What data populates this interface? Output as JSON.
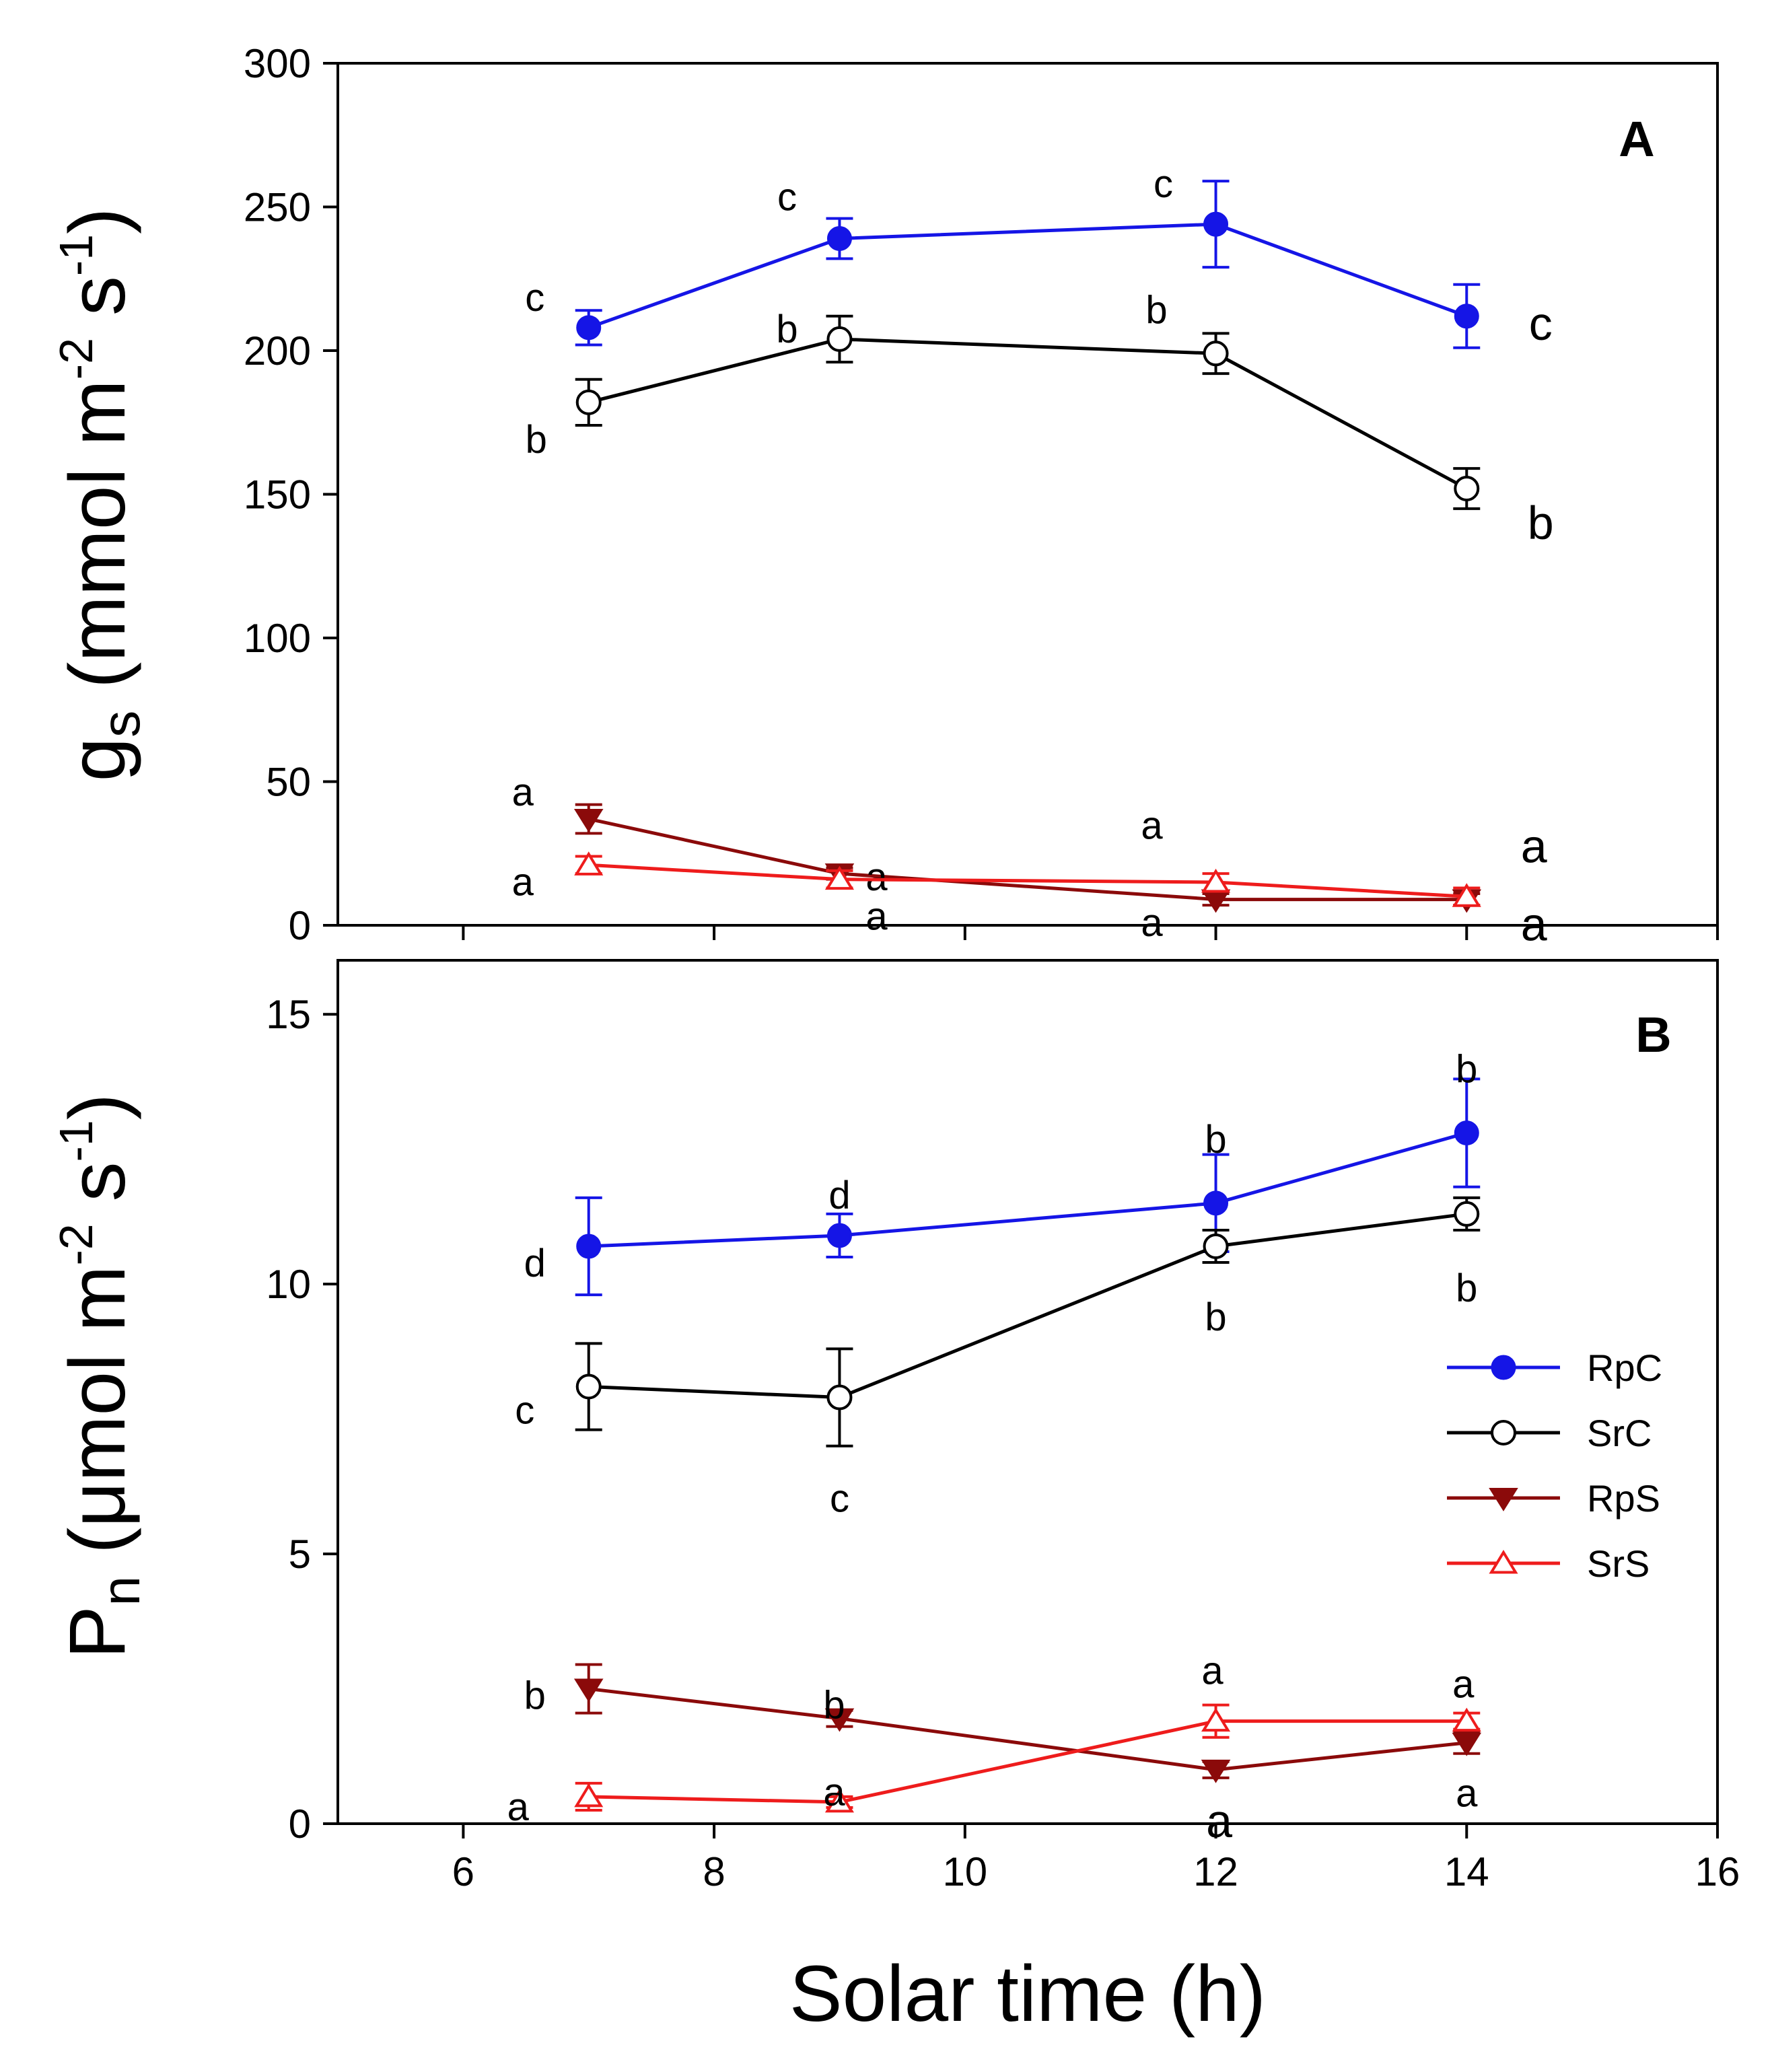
{
  "chart_data": [
    {
      "panel": "A",
      "type": "line",
      "ylabel_main": "g",
      "ylabel_sub": "s",
      "ylabel_rest": " (mmol m",
      "ylabel_sup1": "-2",
      "ylabel_mid": " s",
      "ylabel_sup2": "-1",
      "ylabel_end": ")",
      "xlim": [
        5,
        16
      ],
      "ylim": [
        0,
        300
      ],
      "yticks": [
        0,
        50,
        100,
        150,
        200,
        250,
        300
      ],
      "ytick_labels": [
        "0",
        "50",
        "100",
        "150",
        "200",
        "250",
        "300"
      ],
      "x": [
        7,
        9,
        12,
        14
      ],
      "series": [
        {
          "name": "RpC",
          "values": [
            208,
            239,
            244,
            212
          ],
          "errors": [
            6,
            7,
            15,
            11
          ],
          "letters": [
            "c",
            "c",
            "c",
            "c"
          ]
        },
        {
          "name": "SrC",
          "values": [
            182,
            204,
            199,
            152
          ],
          "errors": [
            8,
            8,
            7,
            7
          ],
          "letters": [
            "b",
            "b",
            "b",
            "b"
          ]
        },
        {
          "name": "RpS",
          "values": [
            37,
            18,
            9,
            9
          ],
          "errors": [
            5,
            2,
            2,
            2
          ],
          "letters": [
            "a",
            "a",
            "a",
            "a"
          ]
        },
        {
          "name": "SrS",
          "values": [
            21,
            16,
            15,
            10
          ],
          "errors": [
            3,
            3,
            3,
            3
          ],
          "letters": [
            "a",
            "a",
            "a",
            "a"
          ]
        }
      ]
    },
    {
      "panel": "B",
      "type": "line",
      "ylabel_main": "P",
      "ylabel_sub": "n",
      "ylabel_rest": " (μmol m",
      "ylabel_sup1": "-2",
      "ylabel_mid": " s",
      "ylabel_sup2": "-1",
      "ylabel_end": ")",
      "xlabel": "Solar time (h)",
      "xlim": [
        5,
        16
      ],
      "ylim": [
        0,
        16
      ],
      "yticks": [
        0,
        5,
        10,
        15
      ],
      "ytick_labels": [
        "0",
        "5",
        "10",
        "15"
      ],
      "xticks": [
        6,
        8,
        10,
        12,
        14,
        16
      ],
      "xtick_labels": [
        "6",
        "8",
        "10",
        "12",
        "14",
        "16"
      ],
      "x": [
        7,
        9,
        12,
        14
      ],
      "series": [
        {
          "name": "RpC",
          "values": [
            10.7,
            10.9,
            11.5,
            12.8
          ],
          "errors": [
            0.9,
            0.4,
            0.9,
            1.0
          ],
          "letters": [
            "d",
            "d",
            "b",
            "b"
          ]
        },
        {
          "name": "SrC",
          "values": [
            8.1,
            7.9,
            10.7,
            11.3
          ],
          "errors": [
            0.8,
            0.9,
            0.3,
            0.3
          ],
          "letters": [
            "c",
            "c",
            "b",
            "b"
          ]
        },
        {
          "name": "RpS",
          "values": [
            2.5,
            1.95,
            1.0,
            1.5
          ],
          "errors": [
            0.45,
            0.15,
            0.15,
            0.2
          ],
          "letters": [
            "b",
            "b",
            "a",
            "a"
          ]
        },
        {
          "name": "SrS",
          "values": [
            0.5,
            0.4,
            1.9,
            1.9
          ],
          "errors": [
            0.25,
            0.1,
            0.3,
            0.15
          ],
          "letters": [
            "a",
            "a",
            "a",
            "a"
          ]
        }
      ]
    }
  ],
  "legend": [
    {
      "name": "RpC",
      "label": "RpC",
      "color": "#1515e6",
      "marker": "filled-circle"
    },
    {
      "name": "SrC",
      "label": "SrC",
      "color": "#000000",
      "marker": "open-circle"
    },
    {
      "name": "RpS",
      "label": "RpS",
      "color": "#8b0a0a",
      "marker": "filled-triangle-down"
    },
    {
      "name": "SrS",
      "label": "SrS",
      "color": "#ee1c1c",
      "marker": "open-triangle-up"
    }
  ]
}
